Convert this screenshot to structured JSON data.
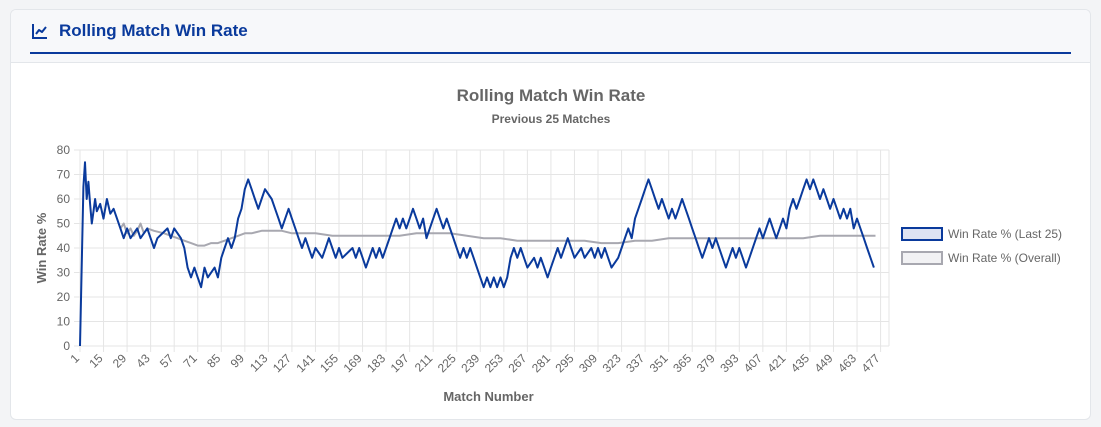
{
  "card": {
    "title": "Rolling Match Win Rate",
    "icon": "line-chart-icon"
  },
  "colors": {
    "accent": "#0a3a9c",
    "overall": "#a8a8b0",
    "grid": "#e5e5e5",
    "text": "#666666"
  },
  "chart_data": {
    "type": "line",
    "title": "Rolling Match Win Rate",
    "subtitle": "Previous 25 Matches",
    "xlabel": "Match Number",
    "ylabel": "Win Rate %",
    "ylim": [
      0,
      80
    ],
    "yticks": [
      0,
      10,
      20,
      30,
      40,
      50,
      60,
      70,
      80
    ],
    "xlim": [
      1,
      482
    ],
    "xticks": [
      "1",
      "15",
      "29",
      "43",
      "57",
      "71",
      "85",
      "99",
      "113",
      "127",
      "141",
      "155",
      "169",
      "183",
      "197",
      "211",
      "225",
      "239",
      "253",
      "267",
      "281",
      "295",
      "309",
      "323",
      "337",
      "351",
      "365",
      "379",
      "393",
      "407",
      "421",
      "435",
      "449",
      "463",
      "477"
    ],
    "legend_position": "right",
    "series": [
      {
        "name": "Win Rate % (Last 25)",
        "color": "#0a3a9c",
        "points": [
          [
            1,
            0
          ],
          [
            3,
            65
          ],
          [
            4,
            75
          ],
          [
            5,
            60
          ],
          [
            6,
            67
          ],
          [
            7,
            58
          ],
          [
            8,
            50
          ],
          [
            9,
            55
          ],
          [
            10,
            60
          ],
          [
            11,
            55
          ],
          [
            13,
            58
          ],
          [
            15,
            52
          ],
          [
            17,
            60
          ],
          [
            19,
            54
          ],
          [
            21,
            56
          ],
          [
            23,
            52
          ],
          [
            25,
            48
          ],
          [
            27,
            44
          ],
          [
            29,
            48
          ],
          [
            31,
            44
          ],
          [
            35,
            48
          ],
          [
            37,
            44
          ],
          [
            41,
            48
          ],
          [
            43,
            44
          ],
          [
            45,
            40
          ],
          [
            47,
            44
          ],
          [
            53,
            48
          ],
          [
            55,
            44
          ],
          [
            57,
            48
          ],
          [
            61,
            44
          ],
          [
            63,
            40
          ],
          [
            65,
            32
          ],
          [
            67,
            28
          ],
          [
            69,
            32
          ],
          [
            71,
            28
          ],
          [
            73,
            24
          ],
          [
            75,
            32
          ],
          [
            77,
            28
          ],
          [
            81,
            32
          ],
          [
            83,
            28
          ],
          [
            85,
            36
          ],
          [
            87,
            40
          ],
          [
            89,
            44
          ],
          [
            91,
            40
          ],
          [
            93,
            44
          ],
          [
            95,
            52
          ],
          [
            97,
            56
          ],
          [
            99,
            64
          ],
          [
            101,
            68
          ],
          [
            103,
            64
          ],
          [
            105,
            60
          ],
          [
            107,
            56
          ],
          [
            109,
            60
          ],
          [
            111,
            64
          ],
          [
            115,
            60
          ],
          [
            117,
            56
          ],
          [
            119,
            52
          ],
          [
            121,
            48
          ],
          [
            123,
            52
          ],
          [
            125,
            56
          ],
          [
            127,
            52
          ],
          [
            129,
            48
          ],
          [
            131,
            44
          ],
          [
            133,
            40
          ],
          [
            135,
            44
          ],
          [
            137,
            40
          ],
          [
            139,
            36
          ],
          [
            141,
            40
          ],
          [
            145,
            36
          ],
          [
            147,
            40
          ],
          [
            149,
            44
          ],
          [
            151,
            40
          ],
          [
            153,
            36
          ],
          [
            155,
            40
          ],
          [
            157,
            36
          ],
          [
            163,
            40
          ],
          [
            165,
            36
          ],
          [
            167,
            40
          ],
          [
            169,
            36
          ],
          [
            171,
            32
          ],
          [
            173,
            36
          ],
          [
            175,
            40
          ],
          [
            177,
            36
          ],
          [
            179,
            40
          ],
          [
            181,
            36
          ],
          [
            183,
            40
          ],
          [
            185,
            44
          ],
          [
            187,
            48
          ],
          [
            189,
            52
          ],
          [
            191,
            48
          ],
          [
            193,
            52
          ],
          [
            195,
            48
          ],
          [
            197,
            52
          ],
          [
            199,
            56
          ],
          [
            201,
            52
          ],
          [
            203,
            48
          ],
          [
            205,
            52
          ],
          [
            207,
            44
          ],
          [
            209,
            48
          ],
          [
            211,
            52
          ],
          [
            213,
            56
          ],
          [
            215,
            52
          ],
          [
            217,
            48
          ],
          [
            219,
            52
          ],
          [
            221,
            48
          ],
          [
            223,
            44
          ],
          [
            225,
            40
          ],
          [
            227,
            36
          ],
          [
            229,
            40
          ],
          [
            231,
            36
          ],
          [
            233,
            40
          ],
          [
            235,
            36
          ],
          [
            237,
            32
          ],
          [
            239,
            28
          ],
          [
            241,
            24
          ],
          [
            243,
            28
          ],
          [
            245,
            24
          ],
          [
            247,
            28
          ],
          [
            249,
            24
          ],
          [
            251,
            28
          ],
          [
            253,
            24
          ],
          [
            255,
            28
          ],
          [
            257,
            36
          ],
          [
            259,
            40
          ],
          [
            261,
            36
          ],
          [
            263,
            40
          ],
          [
            265,
            36
          ],
          [
            267,
            32
          ],
          [
            271,
            36
          ],
          [
            273,
            32
          ],
          [
            275,
            36
          ],
          [
            277,
            32
          ],
          [
            279,
            28
          ],
          [
            281,
            32
          ],
          [
            283,
            36
          ],
          [
            285,
            40
          ],
          [
            287,
            36
          ],
          [
            289,
            40
          ],
          [
            291,
            44
          ],
          [
            293,
            40
          ],
          [
            295,
            36
          ],
          [
            299,
            40
          ],
          [
            301,
            36
          ],
          [
            305,
            40
          ],
          [
            307,
            36
          ],
          [
            309,
            40
          ],
          [
            311,
            36
          ],
          [
            313,
            40
          ],
          [
            315,
            36
          ],
          [
            317,
            32
          ],
          [
            321,
            36
          ],
          [
            323,
            40
          ],
          [
            325,
            44
          ],
          [
            327,
            48
          ],
          [
            329,
            44
          ],
          [
            331,
            52
          ],
          [
            333,
            56
          ],
          [
            335,
            60
          ],
          [
            337,
            64
          ],
          [
            339,
            68
          ],
          [
            341,
            64
          ],
          [
            343,
            60
          ],
          [
            345,
            56
          ],
          [
            347,
            60
          ],
          [
            349,
            56
          ],
          [
            351,
            52
          ],
          [
            353,
            56
          ],
          [
            355,
            52
          ],
          [
            357,
            56
          ],
          [
            359,
            60
          ],
          [
            361,
            56
          ],
          [
            363,
            52
          ],
          [
            365,
            48
          ],
          [
            367,
            44
          ],
          [
            369,
            40
          ],
          [
            371,
            36
          ],
          [
            373,
            40
          ],
          [
            375,
            44
          ],
          [
            377,
            40
          ],
          [
            379,
            44
          ],
          [
            383,
            36
          ],
          [
            385,
            32
          ],
          [
            387,
            36
          ],
          [
            389,
            40
          ],
          [
            391,
            36
          ],
          [
            393,
            40
          ],
          [
            395,
            36
          ],
          [
            397,
            32
          ],
          [
            399,
            36
          ],
          [
            403,
            44
          ],
          [
            405,
            48
          ],
          [
            407,
            44
          ],
          [
            409,
            48
          ],
          [
            411,
            52
          ],
          [
            413,
            48
          ],
          [
            415,
            44
          ],
          [
            417,
            48
          ],
          [
            419,
            52
          ],
          [
            421,
            48
          ],
          [
            423,
            56
          ],
          [
            425,
            60
          ],
          [
            427,
            56
          ],
          [
            429,
            60
          ],
          [
            431,
            64
          ],
          [
            433,
            68
          ],
          [
            435,
            64
          ],
          [
            437,
            68
          ],
          [
            439,
            64
          ],
          [
            441,
            60
          ],
          [
            443,
            64
          ],
          [
            445,
            60
          ],
          [
            447,
            56
          ],
          [
            449,
            60
          ],
          [
            451,
            56
          ],
          [
            453,
            52
          ],
          [
            455,
            56
          ],
          [
            457,
            52
          ],
          [
            459,
            56
          ],
          [
            461,
            48
          ],
          [
            463,
            52
          ],
          [
            465,
            48
          ],
          [
            467,
            44
          ],
          [
            469,
            40
          ],
          [
            471,
            36
          ],
          [
            473,
            32
          ]
        ]
      },
      {
        "name": "Win Rate % (Overall)",
        "color": "#a8a8b0",
        "points": [
          [
            25,
            48
          ],
          [
            27,
            50
          ],
          [
            29,
            46
          ],
          [
            31,
            48
          ],
          [
            33,
            45
          ],
          [
            35,
            47
          ],
          [
            37,
            50
          ],
          [
            39,
            46
          ],
          [
            41,
            48
          ],
          [
            45,
            47
          ],
          [
            51,
            46
          ],
          [
            55,
            45
          ],
          [
            59,
            44
          ],
          [
            63,
            43
          ],
          [
            67,
            42
          ],
          [
            71,
            41
          ],
          [
            75,
            41
          ],
          [
            79,
            42
          ],
          [
            83,
            42
          ],
          [
            87,
            43
          ],
          [
            91,
            44
          ],
          [
            95,
            45
          ],
          [
            99,
            46
          ],
          [
            103,
            46
          ],
          [
            109,
            47
          ],
          [
            115,
            47
          ],
          [
            121,
            47
          ],
          [
            127,
            46
          ],
          [
            133,
            46
          ],
          [
            141,
            46
          ],
          [
            151,
            45
          ],
          [
            161,
            45
          ],
          [
            171,
            45
          ],
          [
            181,
            45
          ],
          [
            191,
            45
          ],
          [
            201,
            46
          ],
          [
            211,
            46
          ],
          [
            221,
            46
          ],
          [
            231,
            45
          ],
          [
            241,
            44
          ],
          [
            251,
            44
          ],
          [
            261,
            43
          ],
          [
            271,
            43
          ],
          [
            281,
            43
          ],
          [
            291,
            43
          ],
          [
            301,
            43
          ],
          [
            311,
            42
          ],
          [
            321,
            42
          ],
          [
            331,
            43
          ],
          [
            341,
            43
          ],
          [
            351,
            44
          ],
          [
            361,
            44
          ],
          [
            371,
            44
          ],
          [
            381,
            44
          ],
          [
            391,
            44
          ],
          [
            401,
            44
          ],
          [
            411,
            44
          ],
          [
            421,
            44
          ],
          [
            431,
            44
          ],
          [
            441,
            45
          ],
          [
            451,
            45
          ],
          [
            461,
            45
          ],
          [
            471,
            45
          ],
          [
            474,
            45
          ]
        ]
      }
    ]
  }
}
